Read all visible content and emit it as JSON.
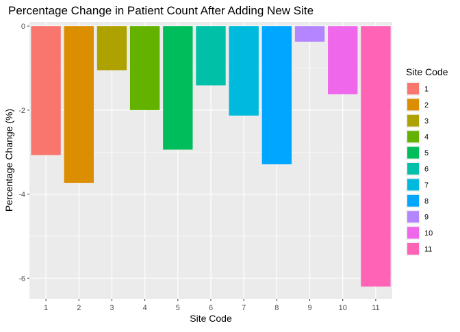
{
  "chart_data": {
    "type": "bar",
    "title": "Percentage Change in Patient Count After Adding New Site",
    "xlabel": "Site Code",
    "ylabel": "Percentage Change (%)",
    "categories": [
      "1",
      "2",
      "3",
      "4",
      "5",
      "6",
      "7",
      "8",
      "9",
      "10",
      "11"
    ],
    "values": [
      -3.07,
      -3.73,
      -1.05,
      -2.0,
      -2.94,
      -1.41,
      -2.13,
      -3.29,
      -0.37,
      -1.62,
      -6.2
    ],
    "ylim": [
      -6.5,
      0.1
    ],
    "yticks": [
      0,
      -2,
      -4,
      -6
    ],
    "ytick_labels": [
      "0",
      "-2",
      "-4",
      "-6"
    ],
    "grid": true,
    "legend": {
      "title": "Site Code",
      "position": "right",
      "labels": [
        "1",
        "2",
        "3",
        "4",
        "5",
        "6",
        "7",
        "8",
        "9",
        "10",
        "11"
      ]
    },
    "colors": [
      "#F8766D",
      "#DB8E00",
      "#AEA200",
      "#64B200",
      "#00BD5C",
      "#00C1A7",
      "#00BADE",
      "#00A6FF",
      "#B385FF",
      "#EF67EB",
      "#FF63B6"
    ],
    "panel_background": "#EBEBEB",
    "grid_color": "#FFFFFF"
  }
}
